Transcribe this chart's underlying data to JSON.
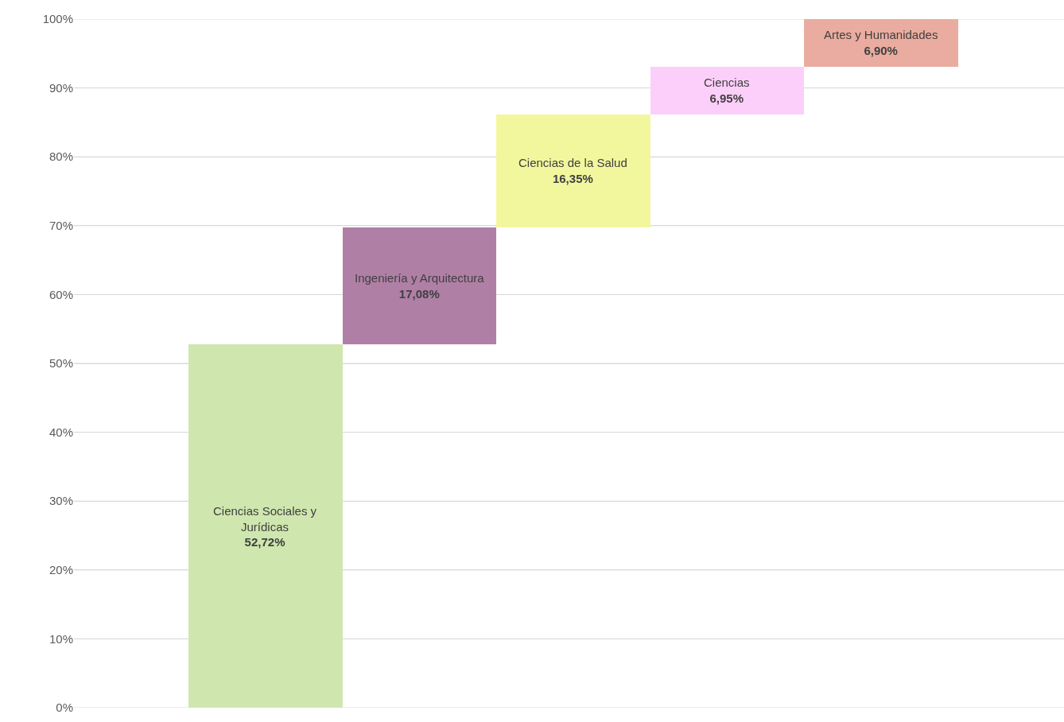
{
  "chart_data": {
    "type": "bar",
    "categories": [
      "Ciencias Sociales y Jurídicas",
      "Ingeniería y Arquitectura",
      "Ciencias de la Salud",
      "Ciencias",
      "Artes y Humanidades"
    ],
    "values": [
      52.72,
      17.08,
      16.35,
      6.95,
      6.9
    ],
    "base": [
      0,
      52.72,
      69.8,
      86.15,
      93.1
    ],
    "colors": [
      "#cfe7ae",
      "#b07fa6",
      "#f2f79e",
      "#fccffa",
      "#eaaca0"
    ],
    "value_labels": [
      "52,72%",
      "17,08%",
      "16,35%",
      "6,95%",
      "6,90%"
    ],
    "ylim": [
      0,
      100
    ],
    "yticks": [
      {
        "value": 0,
        "label": "0%"
      },
      {
        "value": 10,
        "label": "10%"
      },
      {
        "value": 20,
        "label": "20%"
      },
      {
        "value": 30,
        "label": "30%"
      },
      {
        "value": 40,
        "label": "40%"
      },
      {
        "value": 50,
        "label": "50%"
      },
      {
        "value": 60,
        "label": "60%"
      },
      {
        "value": 70,
        "label": "70%"
      },
      {
        "value": 80,
        "label": "80%"
      },
      {
        "value": 90,
        "label": "90%"
      },
      {
        "value": 100,
        "label": "100%"
      }
    ],
    "grid": "y",
    "legend": false,
    "tick_labels": "y"
  }
}
